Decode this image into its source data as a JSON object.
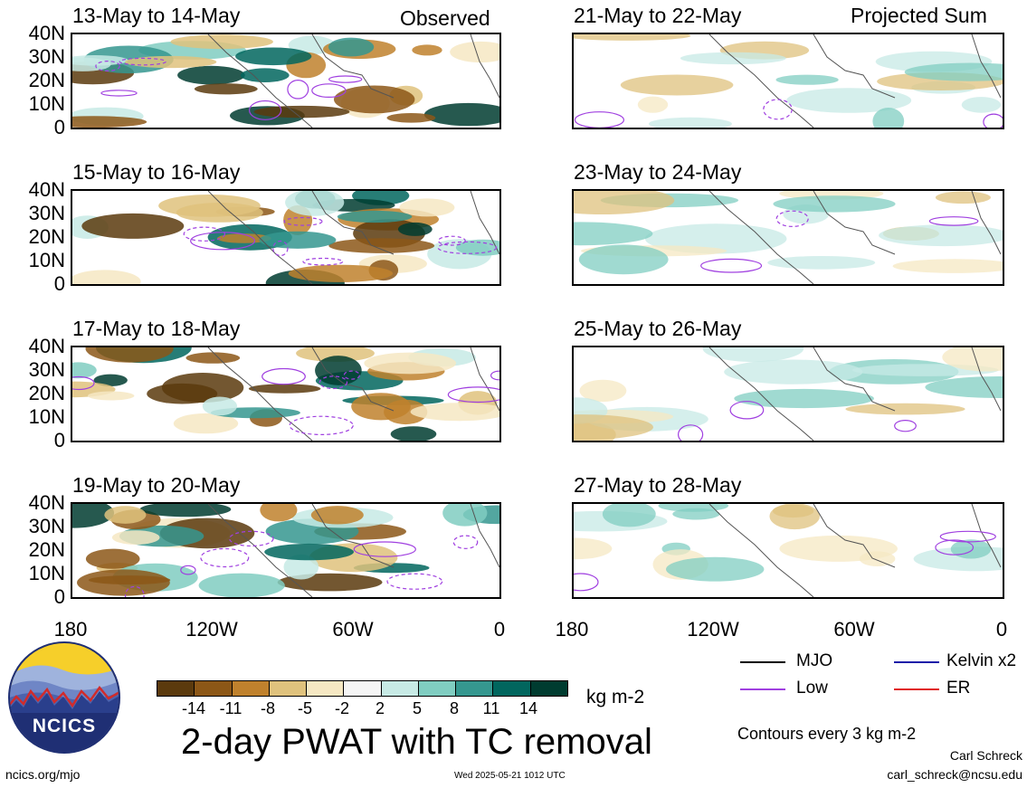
{
  "columns": {
    "left": "Observed",
    "right": "Projected Sum"
  },
  "panels": [
    {
      "title": "13-May to 14-May"
    },
    {
      "title": "21-May to 22-May"
    },
    {
      "title": "15-May to 16-May"
    },
    {
      "title": "23-May to 24-May"
    },
    {
      "title": "17-May to 18-May"
    },
    {
      "title": "25-May to 26-May"
    },
    {
      "title": "19-May to 20-May"
    },
    {
      "title": "27-May to 28-May"
    }
  ],
  "lat_labels": [
    "40N",
    "30N",
    "20N",
    "10N",
    "0"
  ],
  "lon_labels": [
    "180",
    "120W",
    "60W",
    "0"
  ],
  "colorbar": {
    "labels": [
      "-14",
      "-11",
      "-8",
      "-5",
      "-2",
      "2",
      "5",
      "8",
      "11",
      "14"
    ],
    "colors": [
      "#5b3a0d",
      "#8c5717",
      "#bf812d",
      "#dfc27d",
      "#f6e8c3",
      "#f5f5f5",
      "#c7eae5",
      "#80cdc1",
      "#35978f",
      "#01665e",
      "#003c30"
    ],
    "unit": "kg m-2"
  },
  "plot_title": "2-day PWAT with TC removal",
  "legend": [
    {
      "label": "MJO",
      "color": "#000000"
    },
    {
      "label": "Kelvin x2",
      "color": "#1a1aa8"
    },
    {
      "label": "Low",
      "color": "#a040e0"
    },
    {
      "label": "ER",
      "color": "#e02020"
    }
  ],
  "contour_note": "Contours every 3 kg m-2",
  "author": "Carl Schreck",
  "email": "carl_schreck@ncsu.edu",
  "site": "ncics.org/mjo",
  "timestamp": "Wed 2025-05-21 1012 UTC",
  "logo_text": "NCICS"
}
